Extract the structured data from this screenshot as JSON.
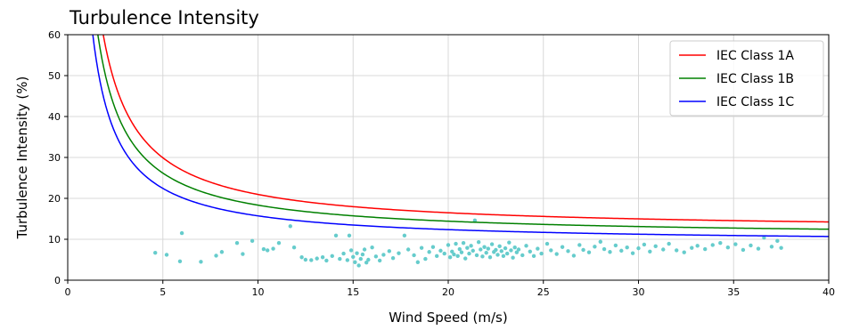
{
  "chart_data": {
    "type": "line",
    "title": "Turbulence Intensity",
    "xlabel": "Wind Speed (m/s)",
    "ylabel": "Turbulence Intensity (%)",
    "xlim": [
      0,
      40
    ],
    "ylim": [
      0,
      60
    ],
    "xticks": [
      0,
      5,
      10,
      15,
      20,
      25,
      30,
      35,
      40
    ],
    "yticks": [
      0,
      10,
      20,
      30,
      40,
      50,
      60
    ],
    "grid": true,
    "legend_position": "top-right",
    "series": [
      {
        "name": "IEC Class 1A",
        "color": "#ff0000",
        "iref": 0.16,
        "formula": "Iref*(0.75+5.6/V)*100"
      },
      {
        "name": "IEC Class 1B",
        "color": "#008000",
        "iref": 0.14,
        "formula": "Iref*(0.75+5.6/V)*100"
      },
      {
        "name": "IEC Class 1C",
        "color": "#0000ff",
        "iref": 0.12,
        "formula": "Iref*(0.75+5.6/V)*100"
      }
    ],
    "scatter": {
      "color": "#66cccc",
      "points": [
        [
          4.6,
          6.7
        ],
        [
          5.2,
          6.2
        ],
        [
          6.0,
          11.5
        ],
        [
          5.9,
          4.6
        ],
        [
          7.0,
          4.5
        ],
        [
          7.8,
          6.0
        ],
        [
          8.1,
          6.9
        ],
        [
          8.9,
          9.1
        ],
        [
          9.2,
          6.4
        ],
        [
          9.7,
          9.6
        ],
        [
          10.3,
          7.6
        ],
        [
          10.5,
          7.3
        ],
        [
          10.8,
          7.7
        ],
        [
          11.1,
          9.1
        ],
        [
          11.7,
          13.2
        ],
        [
          11.9,
          8.0
        ],
        [
          12.3,
          5.6
        ],
        [
          12.5,
          5.0
        ],
        [
          12.8,
          4.9
        ],
        [
          13.1,
          5.3
        ],
        [
          13.4,
          5.6
        ],
        [
          13.6,
          4.8
        ],
        [
          13.9,
          5.9
        ],
        [
          14.1,
          10.9
        ],
        [
          14.3,
          5.2
        ],
        [
          14.5,
          6.5
        ],
        [
          14.7,
          4.9
        ],
        [
          14.8,
          10.9
        ],
        [
          14.9,
          7.3
        ],
        [
          15.0,
          5.7
        ],
        [
          15.1,
          4.4
        ],
        [
          15.2,
          6.6
        ],
        [
          15.3,
          3.6
        ],
        [
          15.4,
          5.2
        ],
        [
          15.5,
          6.3
        ],
        [
          15.6,
          7.5
        ],
        [
          15.7,
          4.3
        ],
        [
          15.8,
          5.0
        ],
        [
          16.0,
          8.0
        ],
        [
          16.2,
          5.8
        ],
        [
          16.4,
          4.8
        ],
        [
          16.6,
          6.2
        ],
        [
          16.9,
          7.1
        ],
        [
          17.1,
          5.4
        ],
        [
          17.4,
          6.6
        ],
        [
          17.7,
          10.9
        ],
        [
          17.9,
          7.5
        ],
        [
          18.2,
          6.1
        ],
        [
          18.4,
          4.4
        ],
        [
          18.6,
          7.9
        ],
        [
          18.8,
          5.2
        ],
        [
          19.0,
          6.9
        ],
        [
          19.2,
          8.1
        ],
        [
          19.4,
          5.9
        ],
        [
          19.6,
          7.2
        ],
        [
          19.8,
          6.5
        ],
        [
          20.0,
          8.6
        ],
        [
          20.1,
          5.6
        ],
        [
          20.2,
          7.0
        ],
        [
          20.3,
          6.3
        ],
        [
          20.4,
          8.9
        ],
        [
          20.5,
          5.9
        ],
        [
          20.6,
          7.6
        ],
        [
          20.7,
          6.8
        ],
        [
          20.8,
          9.1
        ],
        [
          20.9,
          5.3
        ],
        [
          21.0,
          7.9
        ],
        [
          21.1,
          6.5
        ],
        [
          21.2,
          8.4
        ],
        [
          21.3,
          7.2
        ],
        [
          21.4,
          14.6
        ],
        [
          21.5,
          6.1
        ],
        [
          21.6,
          9.3
        ],
        [
          21.7,
          7.5
        ],
        [
          21.8,
          5.8
        ],
        [
          21.9,
          8.1
        ],
        [
          22.0,
          6.7
        ],
        [
          22.1,
          7.7
        ],
        [
          22.2,
          5.6
        ],
        [
          22.3,
          8.8
        ],
        [
          22.4,
          6.9
        ],
        [
          22.5,
          7.4
        ],
        [
          22.6,
          6.2
        ],
        [
          22.7,
          8.3
        ],
        [
          22.8,
          7.1
        ],
        [
          22.9,
          5.9
        ],
        [
          23.0,
          7.8
        ],
        [
          23.1,
          6.5
        ],
        [
          23.2,
          9.2
        ],
        [
          23.3,
          7.3
        ],
        [
          23.4,
          5.5
        ],
        [
          23.5,
          8.0
        ],
        [
          23.6,
          6.8
        ],
        [
          23.7,
          7.5
        ],
        [
          23.9,
          6.1
        ],
        [
          24.1,
          8.4
        ],
        [
          24.3,
          7.0
        ],
        [
          24.5,
          5.9
        ],
        [
          24.7,
          7.7
        ],
        [
          24.9,
          6.5
        ],
        [
          25.2,
          8.9
        ],
        [
          25.4,
          7.3
        ],
        [
          25.7,
          6.4
        ],
        [
          26.0,
          8.1
        ],
        [
          26.3,
          7.1
        ],
        [
          26.6,
          6.0
        ],
        [
          26.9,
          8.6
        ],
        [
          27.1,
          7.4
        ],
        [
          27.4,
          6.8
        ],
        [
          27.7,
          8.2
        ],
        [
          28.0,
          9.4
        ],
        [
          28.2,
          7.6
        ],
        [
          28.5,
          6.9
        ],
        [
          28.8,
          8.5
        ],
        [
          29.1,
          7.2
        ],
        [
          29.4,
          8.0
        ],
        [
          29.7,
          6.6
        ],
        [
          30.0,
          7.8
        ],
        [
          30.3,
          8.7
        ],
        [
          30.6,
          7.0
        ],
        [
          30.9,
          8.3
        ],
        [
          31.3,
          7.5
        ],
        [
          31.6,
          8.9
        ],
        [
          32.0,
          7.3
        ],
        [
          32.4,
          6.8
        ],
        [
          32.8,
          7.9
        ],
        [
          33.1,
          8.4
        ],
        [
          33.5,
          7.6
        ],
        [
          33.9,
          8.6
        ],
        [
          34.3,
          9.1
        ],
        [
          34.7,
          8.0
        ],
        [
          35.1,
          8.8
        ],
        [
          35.5,
          7.4
        ],
        [
          35.9,
          8.5
        ],
        [
          36.3,
          7.7
        ],
        [
          36.6,
          10.4
        ],
        [
          37.0,
          8.2
        ],
        [
          37.3,
          9.6
        ],
        [
          37.5,
          7.9
        ]
      ]
    }
  }
}
